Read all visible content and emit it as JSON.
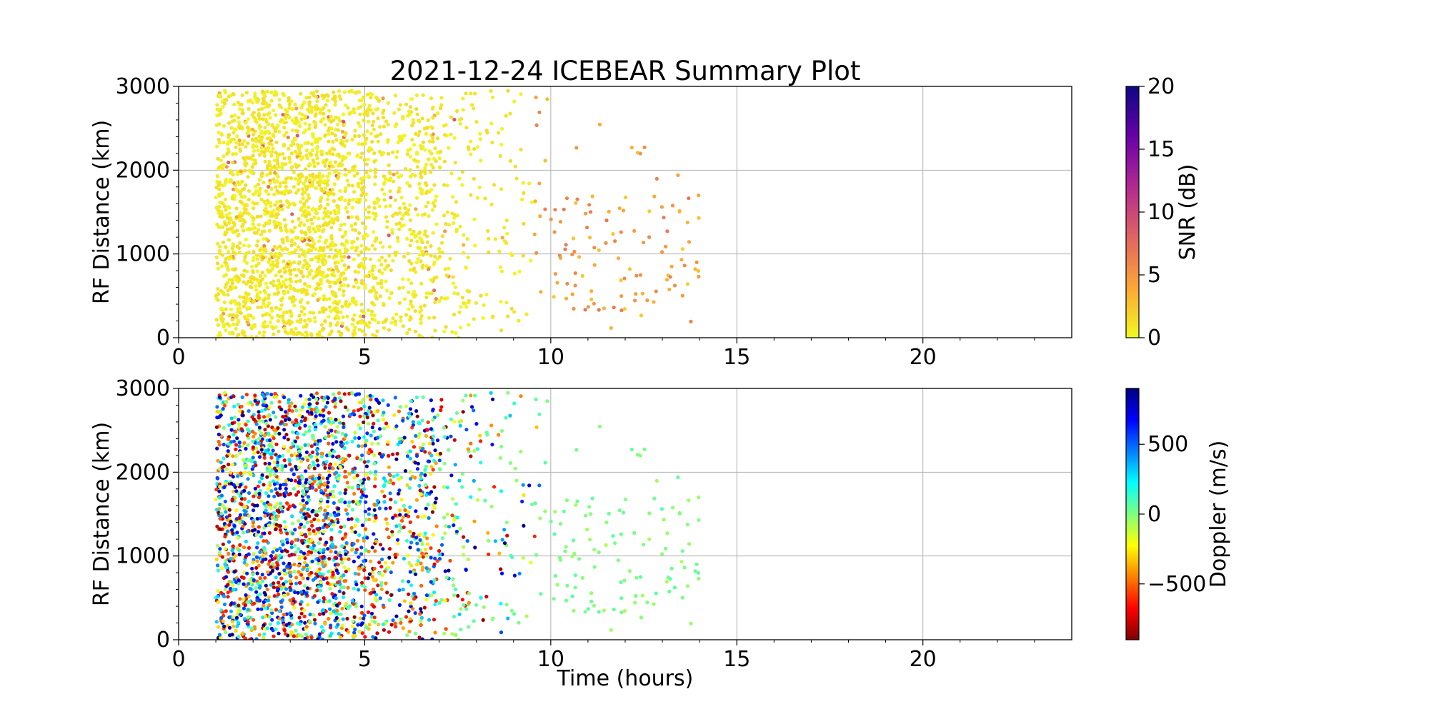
{
  "figure": {
    "title": "2021-12-24 ICEBEAR Summary Plot",
    "xlabel": "Time (hours)"
  },
  "chart_data": [
    {
      "type": "scatter",
      "panel": "top",
      "ylabel": "RF Distance (km)",
      "xlim": [
        0,
        24
      ],
      "ylim": [
        0,
        3000
      ],
      "xticks": [
        0,
        5,
        10,
        15,
        20
      ],
      "xtick_labels": [
        "0",
        "5",
        "10",
        "15",
        "20"
      ],
      "yticks": [
        0,
        1000,
        2000,
        3000
      ],
      "ytick_labels": [
        "0",
        "1000",
        "2000",
        "3000"
      ],
      "grid": true,
      "colorbar": {
        "label": "SNR (dB)",
        "range": [
          0,
          20
        ],
        "ticks": [
          0,
          5,
          10,
          15,
          20
        ],
        "tick_labels": [
          "0",
          "5",
          "10",
          "15",
          "20"
        ],
        "colormap": "plasma_r",
        "colors": [
          "#f0f921",
          "#fca636",
          "#e16462",
          "#b12a90",
          "#6a00a8",
          "#0d0887"
        ]
      },
      "color_variable": "SNR",
      "data_summary": {
        "time_range_hours": [
          1.0,
          14.0
        ],
        "range_km": [
          0,
          2950
        ],
        "note_dense_interval_hours": [
          1.0,
          7.0
        ]
      }
    },
    {
      "type": "scatter",
      "panel": "bottom",
      "ylabel": "RF Distance (km)",
      "xlim": [
        0,
        24
      ],
      "ylim": [
        0,
        3000
      ],
      "xticks": [
        0,
        5,
        10,
        15,
        20
      ],
      "xtick_labels": [
        "0",
        "5",
        "10",
        "15",
        "20"
      ],
      "yticks": [
        0,
        1000,
        2000,
        3000
      ],
      "ytick_labels": [
        "0",
        "1000",
        "2000",
        "3000"
      ],
      "grid": true,
      "colorbar": {
        "label": "Doppler (m/s)",
        "range": [
          -900,
          900
        ],
        "ticks": [
          -500,
          0,
          500
        ],
        "tick_labels": [
          "−500",
          "0",
          "500"
        ],
        "colormap": "jet_r",
        "colors": [
          "#7f0000",
          "#ff0000",
          "#ff7f00",
          "#ffff00",
          "#7fff7f",
          "#00ffff",
          "#007fff",
          "#0000ff",
          "#00007f"
        ]
      },
      "color_variable": "Doppler",
      "data_summary": {
        "time_range_hours": [
          1.0,
          14.0
        ],
        "range_km": [
          0,
          2950
        ]
      }
    }
  ]
}
